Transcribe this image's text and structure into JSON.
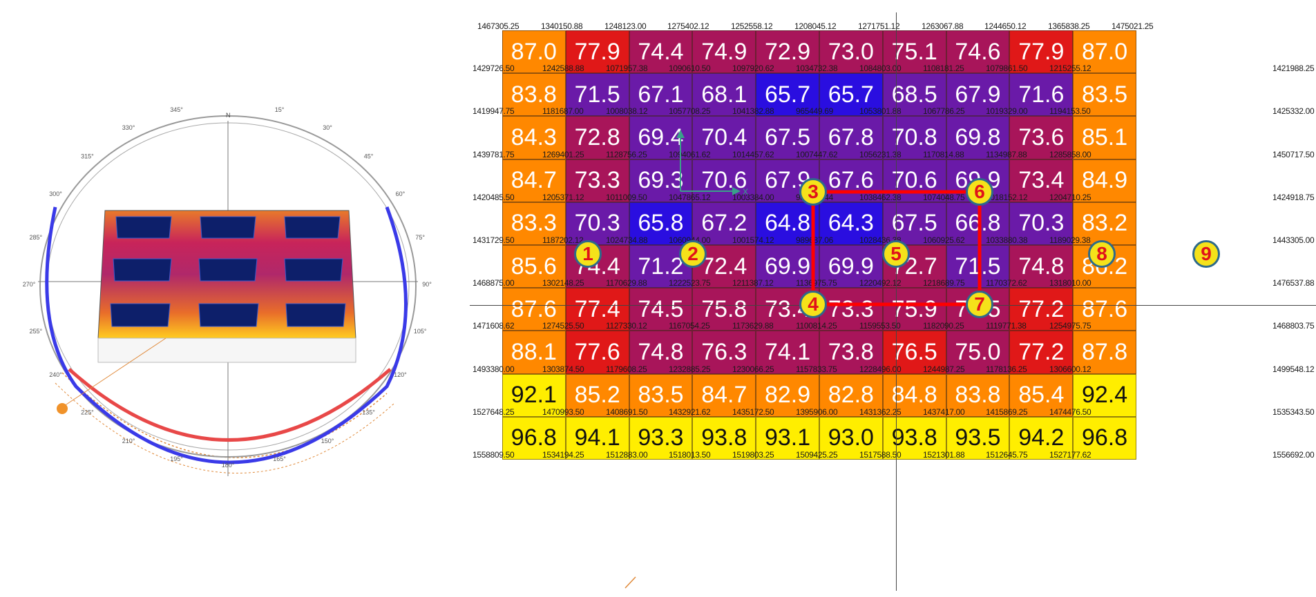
{
  "compass": {
    "north_label": "N",
    "angle_labels": [
      "15°",
      "30°",
      "45°",
      "60°",
      "75°",
      "90°",
      "105°",
      "120°",
      "135°",
      "150°",
      "165°",
      "180°",
      "195°",
      "210°",
      "225°",
      "240°",
      "255°",
      "270°",
      "285°",
      "300°",
      "315°",
      "330°",
      "345°"
    ]
  },
  "grid": {
    "values": [
      [
        87.0,
        77.9,
        74.4,
        74.9,
        72.9,
        73.0,
        75.1,
        74.6,
        77.9,
        87.0
      ],
      [
        83.8,
        71.5,
        67.1,
        68.1,
        65.7,
        65.7,
        68.5,
        67.9,
        71.6,
        83.5
      ],
      [
        84.3,
        72.8,
        69.4,
        70.4,
        67.5,
        67.8,
        70.8,
        69.8,
        73.6,
        85.1
      ],
      [
        84.7,
        73.3,
        69.3,
        70.6,
        67.9,
        67.6,
        70.6,
        69.9,
        73.4,
        84.9
      ],
      [
        83.3,
        70.3,
        65.8,
        67.2,
        64.8,
        64.3,
        67.5,
        66.8,
        70.3,
        83.2
      ],
      [
        85.6,
        74.4,
        71.2,
        72.4,
        69.9,
        69.9,
        72.7,
        71.5,
        74.8,
        86.2
      ],
      [
        87.6,
        77.4,
        74.5,
        75.8,
        73.4,
        73.3,
        75.9,
        74.5,
        77.2,
        87.6
      ],
      [
        88.1,
        77.6,
        74.8,
        76.3,
        74.1,
        73.8,
        76.5,
        75.0,
        77.2,
        87.8
      ],
      [
        92.1,
        85.2,
        83.5,
        84.7,
        82.9,
        82.8,
        84.8,
        83.8,
        85.4,
        92.4
      ],
      [
        96.8,
        94.1,
        93.3,
        93.8,
        93.1,
        93.0,
        93.8,
        93.5,
        94.2,
        96.8
      ]
    ],
    "top_labels": [
      "1467305.25",
      "1340150.88",
      "1248123.00",
      "1275402.12",
      "1252558.12",
      "1208045.12",
      "1271751.12",
      "1263067.88",
      "1244650.12",
      "1365838.25",
      "1475021.25"
    ],
    "rows": [
      {
        "left": "1429726.50",
        "mid": [
          "1242588.88",
          "1071957.38",
          "1090610.50",
          "1097920.62",
          "1034732.38",
          "1084803.00",
          "1108181.25",
          "1079861.50",
          "1215255.12"
        ],
        "right": "1421988.25"
      },
      {
        "left": "1419947.75",
        "mid": [
          "1181687.00",
          "1008038.12",
          "1057708.25",
          "1041382.88",
          "965449.69",
          "1053801.88",
          "1067786.25",
          "1019329.00",
          "1194153.50"
        ],
        "right": "1425332.00"
      },
      {
        "left": "1439781.75",
        "mid": [
          "1269401.25",
          "1128756.25",
          "1094061.62",
          "1014457.62",
          "1007447.62",
          "1056231.38",
          "1170814.88",
          "1134987.88",
          "1285858.00"
        ],
        "right": "1450717.50"
      },
      {
        "left": "1420485.50",
        "mid": [
          "1205371.12",
          "1011009.50",
          "1047865.12",
          "1003384.00",
          "982456.44",
          "1038462.38",
          "1074048.75",
          "1018152.12",
          "1204710.25"
        ],
        "right": "1424918.75"
      },
      {
        "left": "1431729.50",
        "mid": [
          "1187202.12",
          "1024734.88",
          "1060944.00",
          "1001574.12",
          "989687.06",
          "1028436.38",
          "1060925.62",
          "1033880.38",
          "1189029.38"
        ],
        "right": "1443305.00"
      },
      {
        "left": "1468875.00",
        "mid": [
          "1302148.25",
          "1170629.88",
          "1222523.75",
          "1211387.12",
          "1136975.75",
          "1220492.12",
          "1218689.75",
          "1170372.62",
          "1318010.00"
        ],
        "right": "1476537.88"
      },
      {
        "left": "1471608.62",
        "mid": [
          "1274525.50",
          "1127330.12",
          "1167054.25",
          "1173629.88",
          "1100814.25",
          "1159553.50",
          "1182090.25",
          "1119771.38",
          "1254975.75"
        ],
        "right": "1468803.75"
      },
      {
        "left": "1493380.00",
        "mid": [
          "1303874.50",
          "1179608.25",
          "1232885.25",
          "1230066.25",
          "1157833.75",
          "1228496.00",
          "1244987.25",
          "1178136.25",
          "1306600.12"
        ],
        "right": "1499548.12"
      },
      {
        "left": "1527648.25",
        "mid": [
          "1470993.50",
          "1408691.50",
          "1432921.62",
          "1435172.50",
          "1395906.00",
          "1431362.25",
          "1437417.00",
          "1415869.25",
          "1474476.50"
        ],
        "right": "1535343.50"
      },
      {
        "left": "1558809.50",
        "mid": [
          "1534194.25",
          "1512883.00",
          "1518013.50",
          "1519803.25",
          "1509425.25",
          "1517588.50",
          "1521301.88",
          "1512645.75",
          "1527177.62"
        ],
        "right": "1556692.00"
      }
    ],
    "markers": [
      "1",
      "2",
      "3",
      "4",
      "5",
      "6",
      "7",
      "8",
      "9"
    ],
    "axis_label": "X",
    "colors": {
      "yellow": "#ffee00",
      "orange": "#ff8800",
      "red": "#e01818",
      "crimson": "#a8155a",
      "purple": "#6a1aa8",
      "blue": "#2a0ee0",
      "highlight": "#ff0000"
    }
  }
}
